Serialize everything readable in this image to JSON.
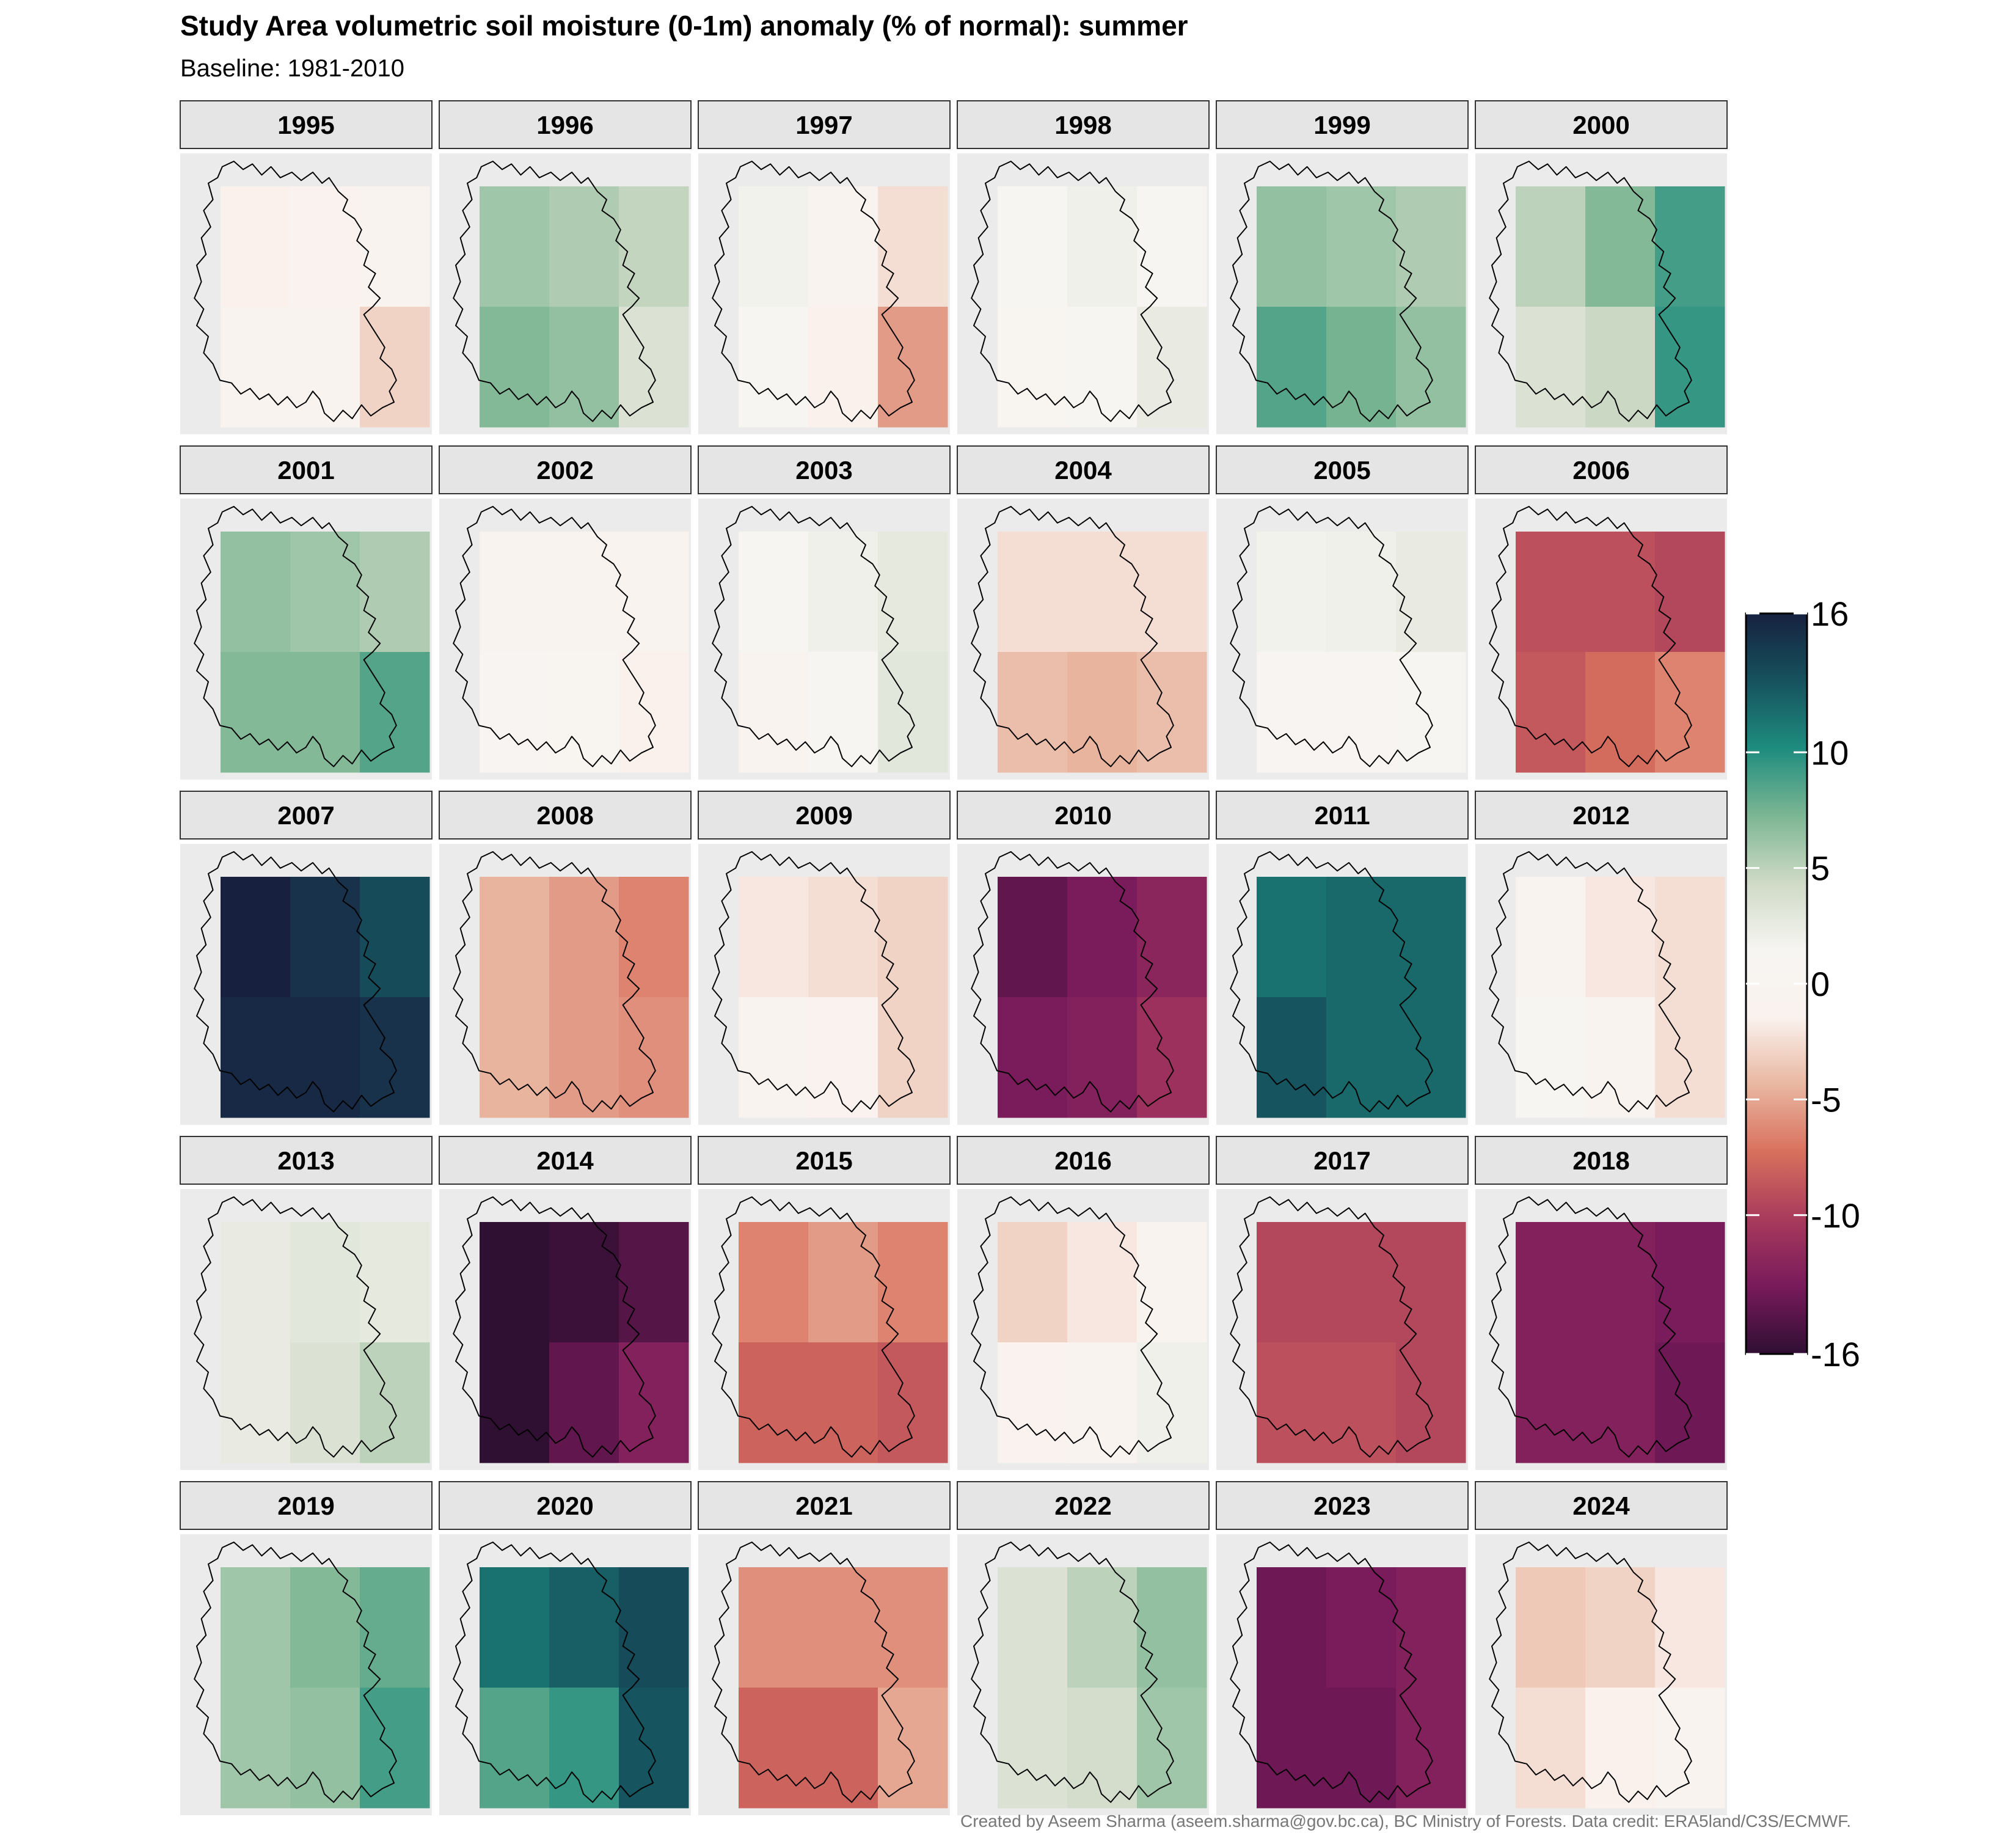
{
  "title": "Study Area volumetric soil moisture (0-1m) anomaly (% of normal): summer",
  "subtitle": "Baseline: 1981-2010",
  "caption": "Created by Aseem Sharma (aseem.sharma@gov.bc.ca), BC Ministry of Forests. Data credit: ERA5land/C3S/ECMWF.",
  "chart_data": {
    "type": "heatmap",
    "title": "Study Area volumetric soil moisture (0-1m) anomaly (% of normal): summer",
    "subtitle": "Baseline: 1981-2010",
    "grid_cells_per_panel": "3 columns x 2 rows",
    "cell_order": "row-major, top row first, west to east",
    "legend": {
      "placement": "right",
      "range": [
        -16,
        16
      ],
      "ticks": [
        "16",
        "10",
        "5",
        "0",
        "-5",
        "-10",
        "-16"
      ],
      "tick_values": [
        16,
        10,
        5,
        0,
        -5,
        -10,
        -16
      ]
    },
    "panels": [
      {
        "year": "1995",
        "values": [
          -1.5,
          -1.0,
          -0.2,
          -0.7,
          -0.7,
          -3.0
        ]
      },
      {
        "year": "1996",
        "values": [
          6.0,
          5.5,
          4.8,
          7.0,
          6.5,
          3.5
        ]
      },
      {
        "year": "1997",
        "values": [
          1.8,
          -0.3,
          -2.5,
          1.0,
          -1.5,
          -5.5
        ]
      },
      {
        "year": "1998",
        "values": [
          1.2,
          2.0,
          1.5,
          0.3,
          1.5,
          2.5
        ]
      },
      {
        "year": "1999",
        "values": [
          6.5,
          6.0,
          5.5,
          8.5,
          7.5,
          6.5
        ]
      },
      {
        "year": "2000",
        "values": [
          5.0,
          7.0,
          9.0,
          3.5,
          4.5,
          9.5
        ]
      },
      {
        "year": "2001",
        "values": [
          6.5,
          6.0,
          5.5,
          7.0,
          7.0,
          8.5
        ]
      },
      {
        "year": "2002",
        "values": [
          -0.5,
          -0.3,
          -0.2,
          0.5,
          0.3,
          -1.5
        ]
      },
      {
        "year": "2003",
        "values": [
          1.2,
          2.0,
          2.8,
          -0.3,
          1.5,
          3.0
        ]
      },
      {
        "year": "2004",
        "values": [
          -2.5,
          -2.5,
          -2.5,
          -4.0,
          -4.5,
          -4.0
        ]
      },
      {
        "year": "2005",
        "values": [
          1.8,
          2.0,
          2.5,
          0.5,
          0.5,
          1.5
        ]
      },
      {
        "year": "2006",
        "values": [
          -9.0,
          -9.0,
          -9.5,
          -8.5,
          -7.5,
          -6.5
        ]
      },
      {
        "year": "2007",
        "values": [
          16.0,
          15.0,
          13.5,
          15.5,
          15.5,
          15.0
        ]
      },
      {
        "year": "2008",
        "values": [
          -4.5,
          -5.5,
          -6.5,
          -4.5,
          -5.5,
          -6.0
        ]
      },
      {
        "year": "2009",
        "values": [
          -2.0,
          -2.5,
          -3.0,
          -0.5,
          -1.0,
          -3.0
        ]
      },
      {
        "year": "2010",
        "values": [
          -14.0,
          -13.0,
          -12.0,
          -13.0,
          -12.5,
          -11.0
        ]
      },
      {
        "year": "2011",
        "values": [
          11.5,
          12.0,
          12.0,
          13.0,
          12.0,
          12.0
        ]
      },
      {
        "year": "2012",
        "values": [
          -0.5,
          -2.0,
          -2.5,
          1.0,
          -0.5,
          -2.5
        ]
      },
      {
        "year": "2013",
        "values": [
          2.5,
          3.0,
          2.8,
          2.5,
          3.5,
          5.0
        ]
      },
      {
        "year": "2014",
        "values": [
          -16.0,
          -15.5,
          -14.5,
          -16.0,
          -14.0,
          -12.5
        ]
      },
      {
        "year": "2015",
        "values": [
          -6.5,
          -5.5,
          -6.5,
          -8.0,
          -8.0,
          -8.5
        ]
      },
      {
        "year": "2016",
        "values": [
          -3.0,
          -2.0,
          -0.5,
          -1.0,
          -0.3,
          2.0
        ]
      },
      {
        "year": "2017",
        "values": [
          -9.5,
          -9.5,
          -9.5,
          -9.0,
          -9.0,
          -9.5
        ]
      },
      {
        "year": "2018",
        "values": [
          -12.5,
          -12.5,
          -13.0,
          -12.5,
          -12.5,
          -13.5
        ]
      },
      {
        "year": "2019",
        "values": [
          6.0,
          7.0,
          8.0,
          6.0,
          6.5,
          9.0
        ]
      },
      {
        "year": "2020",
        "values": [
          11.5,
          12.5,
          13.5,
          8.5,
          9.5,
          13.0
        ]
      },
      {
        "year": "2021",
        "values": [
          -6.0,
          -6.0,
          -6.0,
          -8.0,
          -8.0,
          -5.0
        ]
      },
      {
        "year": "2022",
        "values": [
          3.5,
          5.0,
          6.5,
          3.5,
          4.0,
          6.0
        ]
      },
      {
        "year": "2023",
        "values": [
          -13.5,
          -13.0,
          -12.5,
          -13.5,
          -13.5,
          -12.5
        ]
      },
      {
        "year": "2024",
        "values": [
          -3.5,
          -3.0,
          -2.0,
          -2.5,
          -1.5,
          -0.5
        ]
      }
    ]
  },
  "colors": {
    "panel_bg": "#ebebeb",
    "strip_bg": "#e5e5e5",
    "strip_border": "#333333",
    "outline": "#000000",
    "caption": "#777777",
    "palette": [
      "#2f0f32",
      "#781a5b",
      "#a83a5c",
      "#d8705d",
      "#e9b7a1",
      "#faf2ee",
      "#f7f5f2",
      "#cfdac6",
      "#7cb693",
      "#1e8c7e",
      "#16525e",
      "#17213f"
    ]
  }
}
